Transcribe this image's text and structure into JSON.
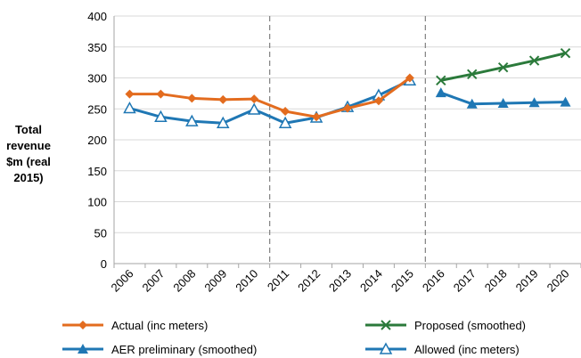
{
  "chart_data": {
    "type": "line",
    "categories": [
      "2006",
      "2007",
      "2008",
      "2009",
      "2010",
      "2011",
      "2012",
      "2013",
      "2014",
      "2015",
      "2016",
      "2017",
      "2018",
      "2019",
      "2020"
    ],
    "ylabel_lines": [
      "Total",
      "revenue",
      "$m (real",
      "2015)"
    ],
    "ylim": [
      0,
      400
    ],
    "yticks": [
      0,
      50,
      100,
      150,
      200,
      250,
      300,
      350,
      400
    ],
    "grid": "horizontal",
    "vlines_after_index": [
      4,
      9
    ],
    "legend_position": "bottom",
    "series": [
      {
        "name": "Actual (inc meters)",
        "color": "#E36C1F",
        "marker": "diamond",
        "values": [
          274,
          274,
          267,
          265,
          266,
          246,
          237,
          251,
          263,
          300,
          null,
          null,
          null,
          null,
          null
        ]
      },
      {
        "name": "Proposed (smoothed)",
        "color": "#2B7A3B",
        "marker": "x",
        "values": [
          null,
          null,
          null,
          null,
          null,
          null,
          null,
          null,
          null,
          null,
          296,
          306,
          317,
          328,
          340
        ]
      },
      {
        "name": "AER preliminary (smoothed)",
        "color": "#1F77B4",
        "marker": "triangle-filled",
        "values": [
          null,
          null,
          null,
          null,
          null,
          null,
          null,
          null,
          null,
          null,
          276,
          258,
          259,
          260,
          261
        ]
      },
      {
        "name": "Allowed (inc meters)",
        "color": "#1F77B4",
        "marker": "triangle-open",
        "values": [
          251,
          237,
          230,
          227,
          249,
          227,
          236,
          253,
          272,
          296,
          null,
          null,
          null,
          null,
          null
        ]
      }
    ]
  }
}
